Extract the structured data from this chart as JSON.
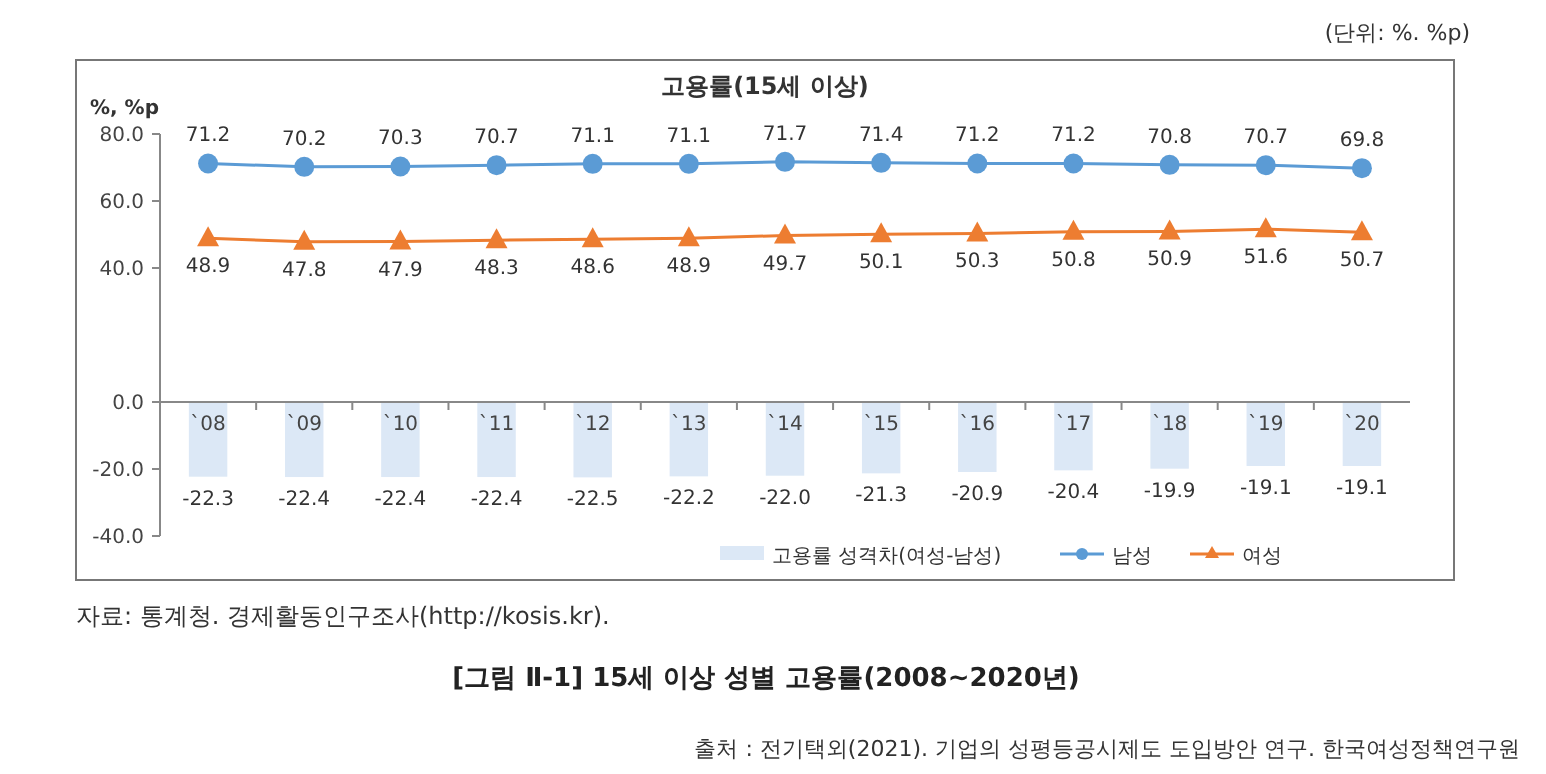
{
  "chart_data": {
    "type": "bar",
    "title": "고용률(15세 이상)",
    "ylabel": "%, %p",
    "categories": [
      "`08",
      "`09",
      "`10",
      "`11",
      "`12",
      "`13",
      "`14",
      "`15",
      "`16",
      "`17",
      "`18",
      "`19",
      "`20"
    ],
    "series": [
      {
        "name": "고용률 성격차(여성-남성)",
        "color": "#dce8f6",
        "values": [
          -22.3,
          -22.4,
          -22.4,
          -22.4,
          -22.5,
          -22.2,
          -22.0,
          -21.3,
          -20.9,
          -20.4,
          -19.9,
          -19.1,
          -19.1
        ],
        "value_labels": [
          "-22.3",
          "-22.4",
          "-22.4",
          "-22.4",
          "-22.5",
          "-22.2",
          "-22.0",
          "-21.3",
          "-20.9",
          "-20.4",
          "-19.9",
          "-19.1",
          "-19.1"
        ]
      },
      {
        "name": "남성",
        "type": "line",
        "marker": "circle",
        "color": "#5b9bd5",
        "values": [
          71.2,
          70.2,
          70.3,
          70.7,
          71.1,
          71.1,
          71.7,
          71.4,
          71.2,
          71.2,
          70.8,
          70.7,
          69.8
        ],
        "value_labels": [
          "71.2",
          "70.2",
          "70.3",
          "70.7",
          "71.1",
          "71.1",
          "71.7",
          "71.4",
          "71.2",
          "71.2",
          "70.8",
          "70.7",
          "69.8"
        ]
      },
      {
        "name": "여성",
        "type": "line",
        "marker": "triangle",
        "color": "#ed7d31",
        "values": [
          48.9,
          47.8,
          47.9,
          48.3,
          48.6,
          48.9,
          49.7,
          50.1,
          50.3,
          50.8,
          50.9,
          51.6,
          50.7
        ],
        "value_labels": [
          "48.9",
          "47.8",
          "47.9",
          "48.3",
          "48.6",
          "48.9",
          "49.7",
          "50.1",
          "50.3",
          "50.8",
          "50.9",
          "51.6",
          "50.7"
        ]
      }
    ],
    "ylim": [
      -40,
      80
    ],
    "yticks": [
      {
        "value": -40,
        "label": "-40.0"
      },
      {
        "value": -20,
        "label": "-20.0"
      },
      {
        "value": 0,
        "label": "0.0"
      },
      {
        "value": 40,
        "label": "40.0"
      },
      {
        "value": 60,
        "label": "60.0"
      },
      {
        "value": 80,
        "label": "80.0"
      }
    ],
    "legend": "bottom right",
    "annotations": [
      "(단위: %. %p)",
      "자료: 통계청. 경제활동인구조사(http://kosis.kr).",
      "[그림 Ⅱ-1] 15세 이상 성별 고용률(2008~2020년)",
      "출처 : 전기택외(2021). 기업의 성평등공시제도 도입방안 연구. 한국여성정책연구원"
    ]
  }
}
